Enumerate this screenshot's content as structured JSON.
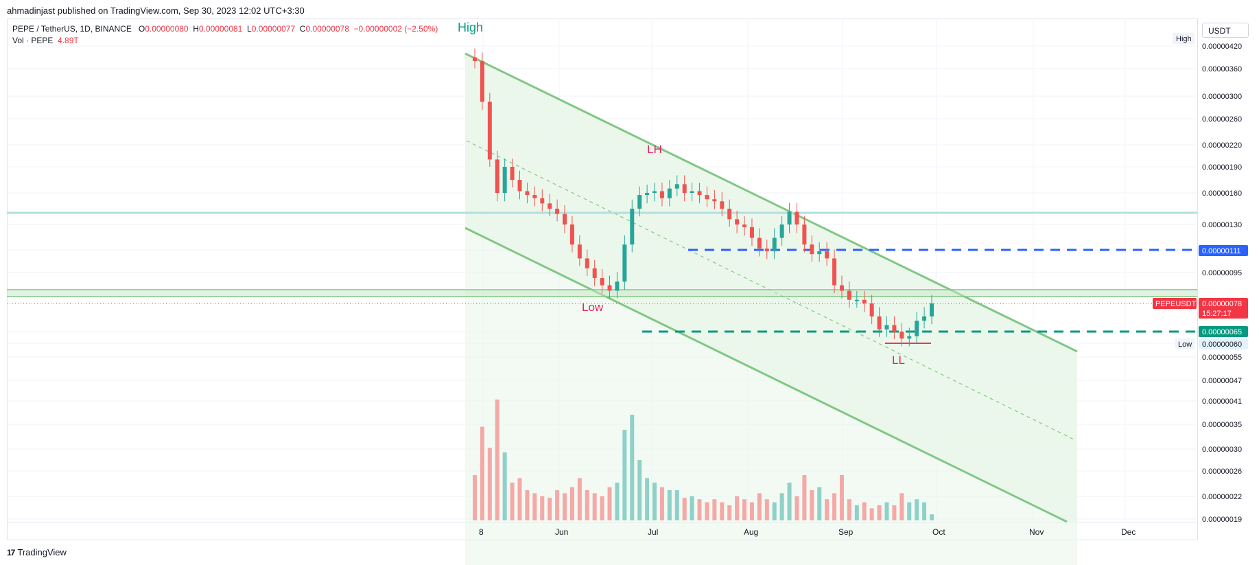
{
  "header": {
    "publish_line": "ahmadinjast published on TradingView.com, Sep 30, 2023 12:02 UTC+3:30"
  },
  "legend": {
    "symbol": "PEPE / TetherUS, 1D, BINANCE",
    "open_label": "O",
    "open": "0.00000080",
    "high_label": "H",
    "high": "0.00000081",
    "low_label": "L",
    "low": "0.00000077",
    "close_label": "C",
    "close": "0.00000078",
    "change": "−0.00000002 (−2.50%)",
    "vol_label": "Vol · PEPE",
    "vol_value": "4.89T"
  },
  "currency": "USDT",
  "brand": {
    "logo": "17",
    "name": "TradingView"
  },
  "colors": {
    "up": "#26a69a",
    "down": "#ef5350",
    "channel": "#81c784",
    "channel_fill": "#e8f5e9",
    "blue_line": "#2962ff",
    "green_line": "#089981",
    "label_pink": "#e91e63"
  },
  "chart_data": {
    "type": "candlestick",
    "symbol": "PEPE / TetherUS",
    "timeframe": "1D",
    "x_ticks": [
      "8",
      "Jun",
      "Jul",
      "Aug",
      "Sep",
      "Oct",
      "Nov",
      "Dec"
    ],
    "y_ticks": [
      "0.00000420",
      "0.00000360",
      "0.00000300",
      "0.00000260",
      "0.00000220",
      "0.00000190",
      "0.00000160",
      "0.00000130",
      "0.00000111",
      "0.00000095",
      "0.00000078",
      "0.00000065",
      "0.00000060",
      "0.00000055",
      "0.00000047",
      "0.00000041",
      "0.00000035",
      "0.00000030",
      "0.00000026",
      "0.00000022",
      "0.00000019"
    ],
    "price_tags": {
      "high_tag": "High",
      "low_tag": "Low",
      "blue_level": "0.00000111",
      "symbol_tag": "PEPEUSDT",
      "last_price": "0.00000078",
      "countdown": "15:27:17",
      "green_level": "0.00000065",
      "low_value": "0.00000060"
    },
    "annotations": {
      "high": "High",
      "low": "Low",
      "lh": "LH",
      "ll": "LL"
    },
    "close_series": [
      3.8,
      2.9,
      2.0,
      1.6,
      1.9,
      1.75,
      1.62,
      1.58,
      1.55,
      1.5,
      1.45,
      1.4,
      1.3,
      1.15,
      1.05,
      0.98,
      0.92,
      0.88,
      0.85,
      0.9,
      1.15,
      1.45,
      1.58,
      1.6,
      1.62,
      1.55,
      1.65,
      1.7,
      1.6,
      1.62,
      1.58,
      1.54,
      1.52,
      1.45,
      1.35,
      1.3,
      1.28,
      1.2,
      1.12,
      1.1,
      1.2,
      1.3,
      1.42,
      1.3,
      1.15,
      1.08,
      1.1,
      1.05,
      0.88,
      0.85,
      0.8,
      0.8,
      0.78,
      0.72,
      0.66,
      0.68,
      0.65,
      0.62,
      0.63,
      0.7,
      0.72,
      0.78
    ],
    "volume_series": [
      30,
      62,
      48,
      80,
      45,
      25,
      28,
      20,
      18,
      16,
      15,
      20,
      18,
      22,
      28,
      20,
      18,
      16,
      22,
      25,
      60,
      70,
      40,
      28,
      25,
      22,
      20,
      20,
      15,
      16,
      14,
      12,
      14,
      12,
      10,
      16,
      14,
      12,
      18,
      14,
      12,
      18,
      25,
      16,
      30,
      20,
      22,
      14,
      18,
      30,
      14,
      10,
      12,
      8,
      10,
      12,
      10,
      18,
      12,
      14,
      12,
      4
    ]
  }
}
